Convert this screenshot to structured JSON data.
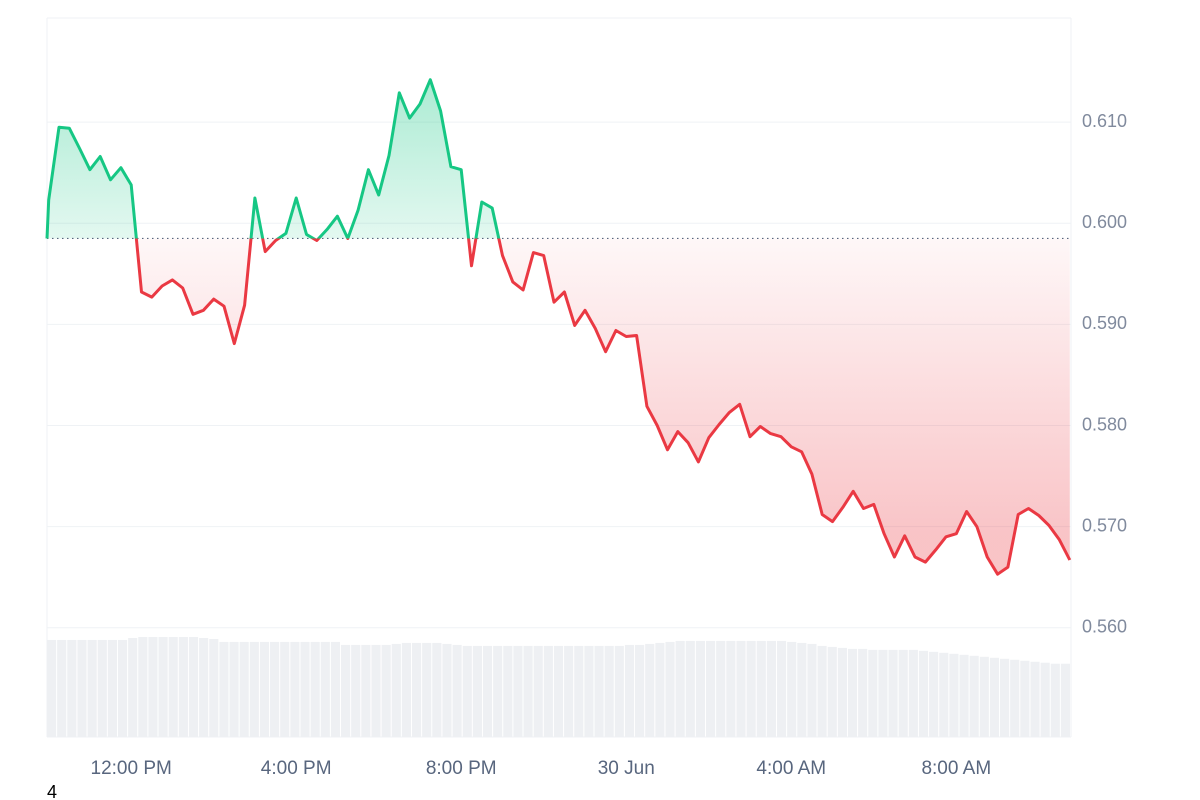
{
  "chart_data": {
    "type": "line",
    "x": [
      9.96,
      10,
      10.25,
      10.5,
      10.75,
      11,
      11.25,
      11.5,
      11.75,
      12,
      12.25,
      12.5,
      12.75,
      13,
      13.25,
      13.5,
      13.75,
      14,
      14.25,
      14.5,
      14.75,
      15,
      15.25,
      15.5,
      15.75,
      16,
      16.25,
      16.5,
      16.75,
      17,
      17.25,
      17.5,
      17.75,
      18,
      18.25,
      18.5,
      18.75,
      19,
      19.25,
      19.5,
      19.75,
      20,
      20.25,
      20.5,
      20.75,
      21,
      21.25,
      21.5,
      21.75,
      22,
      22.25,
      22.5,
      22.75,
      23,
      23.25,
      23.5,
      23.75,
      24,
      24.25,
      24.5,
      24.75,
      25,
      25.25,
      25.5,
      25.75,
      26,
      26.25,
      26.5,
      26.75,
      27,
      27.25,
      27.5,
      27.75,
      28,
      28.25,
      28.5,
      28.75,
      29,
      29.25,
      29.5,
      29.75,
      30,
      30.25,
      30.5,
      30.75,
      31,
      31.25,
      31.5,
      31.75,
      32,
      32.25,
      32.5,
      32.75,
      33,
      33.25,
      33.5,
      33.75,
      34,
      34.25,
      34.5,
      34.75
    ],
    "values": [
      0.5985,
      0.6023,
      0.6095,
      0.6094,
      0.6074,
      0.6053,
      0.6066,
      0.6043,
      0.6055,
      0.6038,
      0.5932,
      0.5927,
      0.5938,
      0.5944,
      0.5936,
      0.591,
      0.5914,
      0.5925,
      0.5918,
      0.5881,
      0.5919,
      0.6025,
      0.5972,
      0.5983,
      0.599,
      0.6025,
      0.5989,
      0.5983,
      0.5994,
      0.6007,
      0.5985,
      0.6013,
      0.6053,
      0.6028,
      0.6067,
      0.6129,
      0.6104,
      0.6118,
      0.6142,
      0.6111,
      0.6056,
      0.6053,
      0.5958,
      0.6021,
      0.6015,
      0.5968,
      0.5942,
      0.5934,
      0.5971,
      0.5968,
      0.5922,
      0.5932,
      0.5899,
      0.5914,
      0.5896,
      0.5873,
      0.5894,
      0.5888,
      0.5889,
      0.5819,
      0.58,
      0.5776,
      0.5794,
      0.5783,
      0.5764,
      0.5788,
      0.5801,
      0.5813,
      0.5821,
      0.5789,
      0.5799,
      0.5792,
      0.5789,
      0.5779,
      0.5774,
      0.5752,
      0.5712,
      0.5705,
      0.5719,
      0.5735,
      0.5718,
      0.5722,
      0.5693,
      0.567,
      0.5691,
      0.567,
      0.5665,
      0.5677,
      0.569,
      0.5693,
      0.5715,
      0.57,
      0.567,
      0.5653,
      0.566,
      0.5712,
      0.5718,
      0.5711,
      0.5701,
      0.5687,
      0.5667
    ],
    "volume": [
      98,
      98,
      98,
      98,
      98,
      98,
      98,
      98,
      100,
      101,
      101,
      101,
      101,
      101,
      101,
      100,
      99,
      96,
      96,
      96,
      96,
      96,
      96,
      96,
      96,
      96,
      96,
      96,
      96,
      93,
      93,
      93,
      93,
      93,
      94,
      95,
      95,
      95,
      95,
      94,
      93,
      92,
      92,
      92,
      92,
      92,
      92,
      92,
      92,
      92,
      92,
      92,
      92,
      92,
      92,
      92,
      92,
      93,
      93,
      94,
      95,
      96,
      97,
      97,
      97,
      97,
      97,
      97,
      97,
      97,
      97,
      97,
      97,
      96,
      95,
      94,
      92,
      91,
      90,
      89,
      89,
      88,
      88,
      88,
      88,
      88,
      87,
      86,
      85,
      84,
      83,
      82,
      81,
      80,
      79,
      78,
      77,
      76,
      75,
      74,
      74
    ],
    "baseline": 0.5985,
    "color_up": "#16c784",
    "color_down": "#ea3943",
    "xlim": [
      9.96,
      34.78
    ],
    "xticks": [
      {
        "value": 12,
        "label": "12:00 PM"
      },
      {
        "value": 16,
        "label": "4:00 PM"
      },
      {
        "value": 20,
        "label": "8:00 PM"
      },
      {
        "value": 24,
        "label": "30 Jun"
      },
      {
        "value": 28,
        "label": "4:00 AM"
      },
      {
        "value": 32,
        "label": "8:00 AM"
      }
    ],
    "ylim": [
      0.5492,
      0.6203
    ],
    "yticks": [
      {
        "value": 0.56,
        "label": "0.560"
      },
      {
        "value": 0.57,
        "label": "0.570"
      },
      {
        "value": 0.58,
        "label": "0.580"
      },
      {
        "value": 0.59,
        "label": "0.590"
      },
      {
        "value": 0.6,
        "label": "0.600"
      },
      {
        "value": 0.61,
        "label": "0.610"
      }
    ],
    "grid": true
  },
  "footnote": "4"
}
